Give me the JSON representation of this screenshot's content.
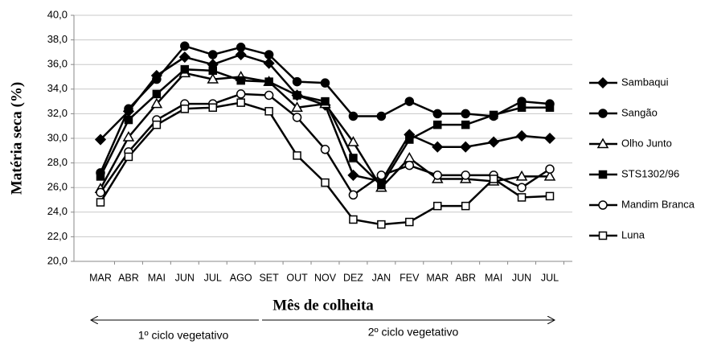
{
  "chart_data": {
    "type": "line",
    "y_label": "Matéria  seca  (%)",
    "x_label": "Mês de colheita",
    "annotations": [
      "1º ciclo vegetativo",
      "2º ciclo vegetativo"
    ],
    "categories": [
      "MAR",
      "ABR",
      "MAI",
      "JUN",
      "JUL",
      "AGO",
      "SET",
      "OUT",
      "NOV",
      "DEZ",
      "JAN",
      "FEV",
      "MAR",
      "ABR",
      "MAI",
      "JUN",
      "JUL"
    ],
    "ylim": [
      20,
      40
    ],
    "yticks": [
      {
        "value": 20,
        "label": "20,0"
      },
      {
        "value": 22,
        "label": "22,0"
      },
      {
        "value": 24,
        "label": "24,0"
      },
      {
        "value": 26,
        "label": "26,0"
      },
      {
        "value": 28,
        "label": "28,0"
      },
      {
        "value": 30,
        "label": "30,0"
      },
      {
        "value": 32,
        "label": "32,0"
      },
      {
        "value": 34,
        "label": "34,0"
      },
      {
        "value": 36,
        "label": "36,0"
      },
      {
        "value": 38,
        "label": "38,0"
      },
      {
        "value": 40,
        "label": "40,0"
      }
    ],
    "grid": true,
    "legend": "right",
    "series": [
      {
        "name": "Sambaqui",
        "color": "#000000",
        "marker": "diamond",
        "filled": true,
        "values": [
          29.9,
          32.2,
          35.1,
          36.6,
          36.0,
          36.8,
          36.1,
          33.5,
          32.7,
          27.0,
          26.5,
          30.3,
          29.3,
          29.3,
          29.7,
          30.2,
          30.0
        ]
      },
      {
        "name": "Sangão",
        "color": "#000000",
        "marker": "circle",
        "filled": true,
        "values": [
          27.2,
          32.4,
          34.8,
          37.5,
          36.8,
          37.4,
          36.8,
          34.6,
          34.5,
          31.8,
          31.8,
          33.0,
          32.0,
          32.0,
          31.8,
          33.0,
          32.8
        ]
      },
      {
        "name": "Olho Junto",
        "color": "#000000",
        "marker": "triangle",
        "filled": false,
        "values": [
          25.9,
          30.1,
          32.8,
          35.3,
          34.8,
          35.0,
          34.6,
          32.5,
          32.8,
          29.7,
          26.0,
          28.4,
          26.7,
          26.7,
          26.5,
          26.9,
          26.9
        ]
      },
      {
        "name": "STS1302/96",
        "color": "#000000",
        "marker": "square",
        "filled": true,
        "values": [
          26.9,
          31.5,
          33.6,
          35.6,
          35.5,
          34.7,
          34.6,
          33.5,
          33.0,
          28.4,
          26.2,
          29.9,
          31.1,
          31.1,
          31.9,
          32.5,
          32.5
        ]
      },
      {
        "name": "Mandim Branca",
        "color": "#000000",
        "marker": "circle",
        "filled": false,
        "values": [
          25.6,
          28.9,
          31.5,
          32.8,
          32.8,
          33.6,
          33.5,
          31.7,
          29.1,
          25.4,
          27.0,
          27.8,
          27.0,
          27.0,
          27.0,
          26.0,
          27.5
        ]
      },
      {
        "name": "Luna",
        "color": "#000000",
        "marker": "square",
        "filled": false,
        "values": [
          24.8,
          28.5,
          31.1,
          32.4,
          32.5,
          32.9,
          32.2,
          28.6,
          26.4,
          23.4,
          23.0,
          23.2,
          24.5,
          24.5,
          26.7,
          25.2,
          25.3
        ]
      }
    ]
  }
}
